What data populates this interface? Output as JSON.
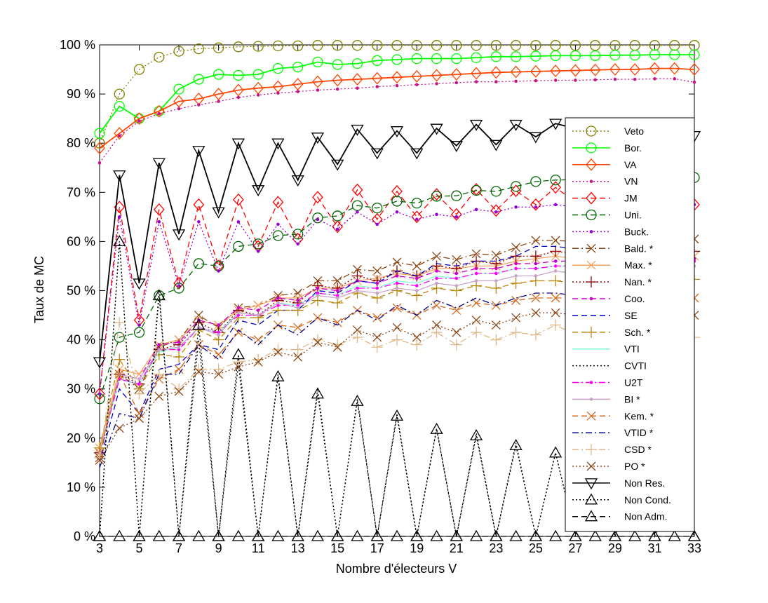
{
  "chart_data": {
    "type": "line",
    "xlabel": "Nombre d'électeurs V",
    "ylabel": "Taux de MC",
    "xlim": [
      3,
      33
    ],
    "ylim": [
      0,
      100
    ],
    "x_ticks": [
      3,
      5,
      7,
      9,
      11,
      13,
      15,
      17,
      19,
      21,
      23,
      25,
      27,
      29,
      31,
      33
    ],
    "y_tick_values": [
      0,
      10,
      20,
      30,
      40,
      50,
      60,
      70,
      80,
      90,
      100
    ],
    "y_tick_labels": [
      "0 %",
      "10 %",
      "20 %",
      "30 %",
      "40 %",
      "50 %",
      "60 %",
      "70 %",
      "80 %",
      "90 %",
      "100 %"
    ],
    "grid": false,
    "legend_position": "right",
    "x": [
      3,
      4,
      5,
      6,
      7,
      8,
      9,
      10,
      11,
      12,
      13,
      14,
      15,
      16,
      17,
      18,
      19,
      20,
      21,
      22,
      23,
      24,
      25,
      26,
      27,
      28,
      29,
      30,
      31,
      32,
      33
    ],
    "series": [
      {
        "name": "Veto",
        "color": "#808000",
        "dash": "dotted",
        "marker": "circle",
        "values": [
          80,
          90,
          95,
          97.5,
          98.7,
          99.2,
          99.4,
          99.6,
          99.7,
          99.8,
          99.8,
          99.9,
          99.9,
          99.9,
          99.9,
          99.9,
          99.9,
          99.9,
          99.9,
          99.9,
          99.9,
          99.9,
          99.9,
          99.9,
          99.9,
          99.9,
          99.9,
          99.9,
          99.9,
          99.9,
          99.9
        ]
      },
      {
        "name": "Bor.",
        "color": "#00ff00",
        "dash": "solid",
        "marker": "circle",
        "values": [
          82,
          87.5,
          85,
          86.5,
          91,
          93,
          94,
          93.8,
          94,
          95.2,
          95.5,
          96.5,
          96,
          96.2,
          96.8,
          97,
          97.2,
          97.2,
          97.2,
          97.4,
          97.6,
          97.6,
          97.7,
          97.8,
          97.8,
          97.8,
          97.9,
          97.9,
          98,
          98,
          98
        ]
      },
      {
        "name": "VA",
        "color": "#ff4500",
        "dash": "solid",
        "marker": "diamond",
        "values": [
          79,
          82,
          85,
          86.5,
          88.5,
          89,
          90,
          90.8,
          91.2,
          91.5,
          92,
          92.5,
          92.8,
          93,
          93.2,
          93.4,
          93.6,
          93.8,
          94,
          94.2,
          94.4,
          94.5,
          94.6,
          94.7,
          94.8,
          94.9,
          95,
          95,
          95.2,
          95.2,
          95
        ]
      },
      {
        "name": "VN",
        "color": "#c71585",
        "dash": "dotted",
        "marker": "dot",
        "values": [
          76,
          81.5,
          84.5,
          86,
          87,
          87.8,
          88.5,
          89.3,
          89.8,
          90.2,
          90.5,
          90.8,
          91,
          91.2,
          91.5,
          91.7,
          91.9,
          92.1,
          92.3,
          92.5,
          92.5,
          92.6,
          92.7,
          92.8,
          92.8,
          92.9,
          93,
          93,
          93.1,
          93.1,
          92.4
        ]
      },
      {
        "name": "JM",
        "color": "#ff0000",
        "dash": "dashed",
        "marker": "diamond",
        "values": [
          29,
          67,
          44,
          66.5,
          51.5,
          67.5,
          55,
          68.5,
          59,
          68,
          60.5,
          69,
          63,
          70.5,
          64.5,
          70.2,
          65,
          69.6,
          65.5,
          70.6,
          66.3,
          70.3,
          67.5,
          71,
          68,
          70.5,
          68.5,
          70,
          69,
          70,
          67.5
        ]
      },
      {
        "name": "Uni.",
        "color": "#006400",
        "dash": "dashed",
        "marker": "circle",
        "values": [
          28,
          40.5,
          41.5,
          49,
          50.5,
          55.5,
          55,
          59,
          59.5,
          61.2,
          61.5,
          64.8,
          65.2,
          67.3,
          66.8,
          68.2,
          67.8,
          69.2,
          69.3,
          70.4,
          70.2,
          71.2,
          72.2,
          72.5,
          72.6,
          72.8,
          72.8,
          72.9,
          73,
          73,
          73
        ]
      },
      {
        "name": "Buck.",
        "color": "#9400d3",
        "dash": "dotted",
        "marker": "dot",
        "values": [
          29,
          65,
          43,
          64,
          51,
          64,
          54,
          64,
          58,
          63.5,
          59.5,
          64.5,
          62.5,
          66,
          63.5,
          66,
          64.5,
          65.5,
          65,
          66.5,
          66,
          67,
          67,
          67.5,
          67,
          68,
          67.5,
          68,
          67.5,
          68,
          67.5
        ]
      },
      {
        "name": "Bald. *",
        "color": "#8b4513",
        "dash": "dashdot",
        "marker": "x",
        "values": [
          16,
          33,
          30,
          38.5,
          40,
          45,
          42.5,
          46.5,
          47,
          49,
          49.5,
          52,
          52,
          54.3,
          54,
          55.8,
          55,
          57,
          56.3,
          57.5,
          57.2,
          58.8,
          60.2,
          60.2,
          60,
          60.3,
          60.2,
          60.3,
          60.4,
          60.4,
          60.5
        ]
      },
      {
        "name": "Max. *",
        "color": "#f4a460",
        "dash": "solid",
        "marker": "x",
        "values": [
          18,
          34,
          33,
          39,
          40,
          44,
          43,
          46,
          47,
          48.5,
          48.5,
          50.5,
          50.5,
          52,
          52.5,
          53.5,
          53,
          54.5,
          54.5,
          55,
          55,
          56,
          56.5,
          57,
          56.5,
          57,
          57,
          57.5,
          57,
          57.5,
          57
        ]
      },
      {
        "name": "Nan. *",
        "color": "#8b0000",
        "dash": "dotted",
        "marker": "plus",
        "values": [
          17,
          33,
          31,
          38,
          39,
          43.5,
          41.5,
          46,
          45,
          48,
          47.5,
          51,
          50.5,
          53,
          52,
          54,
          53,
          55,
          54.5,
          56,
          55.5,
          57,
          57,
          58,
          57.5,
          58,
          58,
          58.5,
          58,
          58.5,
          58
        ]
      },
      {
        "name": "Coo.",
        "color": "#cc00cc",
        "dash": "dashed",
        "marker": "dot",
        "values": [
          17,
          33,
          32,
          39,
          39.5,
          44,
          43,
          46.5,
          46,
          48.5,
          48,
          50.5,
          50,
          52,
          51.5,
          53,
          52.5,
          54,
          53.5,
          54.5,
          54.5,
          55.5,
          55.5,
          56,
          56,
          56.5,
          56.5,
          57,
          56.5,
          57,
          56.5
        ]
      },
      {
        "name": "SE",
        "color": "#0000cd",
        "dash": "dashed",
        "marker": "none",
        "values": [
          15,
          30,
          25,
          34,
          35,
          39,
          38,
          44,
          43,
          46,
          46,
          50,
          49.5,
          52,
          51.5,
          54,
          53,
          55.5,
          55,
          56,
          56,
          57,
          59,
          59,
          58.5,
          59.5,
          59.5,
          59.5,
          59.5,
          59.5,
          60
        ]
      },
      {
        "name": "Sch. *",
        "color": "#b8860b",
        "dash": "dashed",
        "marker": "plus",
        "values": [
          18,
          36,
          30,
          37,
          36.5,
          42,
          40,
          44.5,
          44.5,
          46,
          46,
          48,
          47.5,
          49.5,
          48.5,
          50,
          49,
          50.5,
          50,
          51,
          50.5,
          51.5,
          52,
          52,
          51.5,
          52,
          52,
          52.3,
          52,
          52.3,
          52.3
        ]
      },
      {
        "name": "VTI",
        "color": "#7fffd4",
        "dash": "solid",
        "marker": "none",
        "values": [
          17,
          32,
          31,
          37.5,
          38.5,
          42.5,
          41.5,
          45.5,
          45,
          47.5,
          47,
          49.5,
          49,
          51,
          50.5,
          52,
          51.5,
          53,
          52.5,
          53.5,
          53.5,
          54.5,
          54.5,
          55,
          55,
          55.5,
          55.5,
          56,
          55.5,
          56,
          56
        ]
      },
      {
        "name": "CVTI",
        "color": "#000000",
        "dash": "dotted",
        "marker": "none",
        "values": [
          0,
          60,
          0,
          50,
          0,
          40,
          0,
          35,
          0,
          33,
          0,
          30,
          0,
          28,
          0,
          25,
          0,
          22,
          0,
          21,
          0,
          19,
          0,
          17,
          0,
          15,
          0,
          13,
          0,
          11,
          0
        ]
      },
      {
        "name": "U2T",
        "color": "#ff00ff",
        "dash": "dashdot",
        "marker": "dot",
        "values": [
          17,
          32,
          31,
          38,
          38,
          42.5,
          41.5,
          45,
          45,
          47,
          47,
          49.5,
          49,
          50.5,
          50.5,
          51.5,
          51,
          52.5,
          52.5,
          53.5,
          53.5,
          54.5,
          54.5,
          55,
          55,
          55.5,
          55.5,
          56,
          55.5,
          56,
          56
        ]
      },
      {
        "name": "BI *",
        "color": "#c8a2c8",
        "dash": "solid",
        "marker": "dot",
        "values": [
          17,
          33,
          32,
          38,
          38.5,
          42.5,
          41,
          45.5,
          45,
          47.5,
          46.5,
          49,
          48.5,
          50,
          49.5,
          50.5,
          50,
          51.5,
          51,
          52,
          52,
          53,
          53,
          54,
          53.5,
          54,
          54,
          54.5,
          54.5,
          54.5,
          55
        ]
      },
      {
        "name": "Kem. *",
        "color": "#d2691e",
        "dash": "dashed",
        "marker": "x",
        "values": [
          17,
          33,
          25,
          32,
          34,
          39,
          37,
          41.5,
          40,
          43,
          42.5,
          44.5,
          43.5,
          46,
          44.5,
          46.5,
          45,
          47,
          46,
          47.5,
          47,
          48,
          48.5,
          48.5,
          48.5,
          48.5,
          48.5,
          48.5,
          48.5,
          48.5,
          48.5
        ]
      },
      {
        "name": "VTID *",
        "color": "#00008b",
        "dash": "dashdot",
        "marker": "none",
        "values": [
          14,
          25,
          24,
          33,
          33,
          39,
          36,
          42,
          39,
          43,
          41,
          44.5,
          43,
          46,
          44,
          47,
          45,
          48,
          46.5,
          48.5,
          47,
          48.5,
          49.5,
          49.5,
          49,
          49.5,
          49.5,
          49.5,
          49.5,
          49.5,
          49.5
        ]
      },
      {
        "name": "CSD *",
        "color": "#deb887",
        "dash": "dashdot",
        "marker": "plus",
        "values": [
          16,
          43.5,
          29,
          33,
          30,
          34,
          34,
          35.5,
          36,
          38,
          38,
          40,
          39,
          40.5,
          38.5,
          40,
          39,
          41.5,
          39,
          41.5,
          40,
          41.5,
          41,
          43,
          41,
          41,
          41,
          41,
          41,
          40.5,
          40.5
        ]
      },
      {
        "name": "PO *",
        "color": "#8b4513",
        "dash": "dotted",
        "marker": "x",
        "values": [
          15.5,
          22,
          24,
          28.5,
          29.5,
          33.5,
          33,
          34.5,
          35.5,
          37.5,
          36.5,
          39.5,
          38.5,
          42,
          40.5,
          42.5,
          40.5,
          43,
          41.5,
          44,
          43,
          44.5,
          45.5,
          45.5,
          45,
          45,
          45,
          45,
          45,
          45,
          45
        ]
      },
      {
        "name": "Non Res.",
        "color": "#000000",
        "dash": "solid",
        "marker": "tri-down",
        "values": [
          35.5,
          73.5,
          51.5,
          76,
          61.5,
          78.5,
          66,
          80,
          70.5,
          80,
          72.5,
          81.2,
          75.7,
          82.8,
          78,
          82.5,
          78,
          83,
          79.5,
          83.8,
          79.7,
          83.8,
          81.3,
          84,
          83,
          84,
          84,
          84.2,
          83.8,
          84.2,
          81.5
        ]
      },
      {
        "name": "Non Cond.",
        "color": "#000000",
        "dash": "dotted",
        "marker": "tri-up",
        "values": [
          0,
          60,
          0,
          49,
          0,
          43,
          0,
          37,
          0,
          32.5,
          0,
          29,
          0,
          27.5,
          0,
          24.5,
          0,
          21.8,
          0,
          20.5,
          0,
          18.5,
          0,
          17,
          0,
          15,
          0,
          13,
          0,
          11,
          0
        ]
      },
      {
        "name": "Non Adm.",
        "color": "#000000",
        "dash": "dashed",
        "marker": "tri-up",
        "values": [
          0,
          0,
          0,
          0,
          0,
          0,
          0,
          0,
          0,
          0,
          0,
          0,
          0,
          0,
          0,
          0,
          0,
          0,
          0,
          0,
          0,
          0,
          0,
          0,
          0,
          0,
          0,
          0,
          0,
          0,
          0
        ]
      }
    ]
  }
}
